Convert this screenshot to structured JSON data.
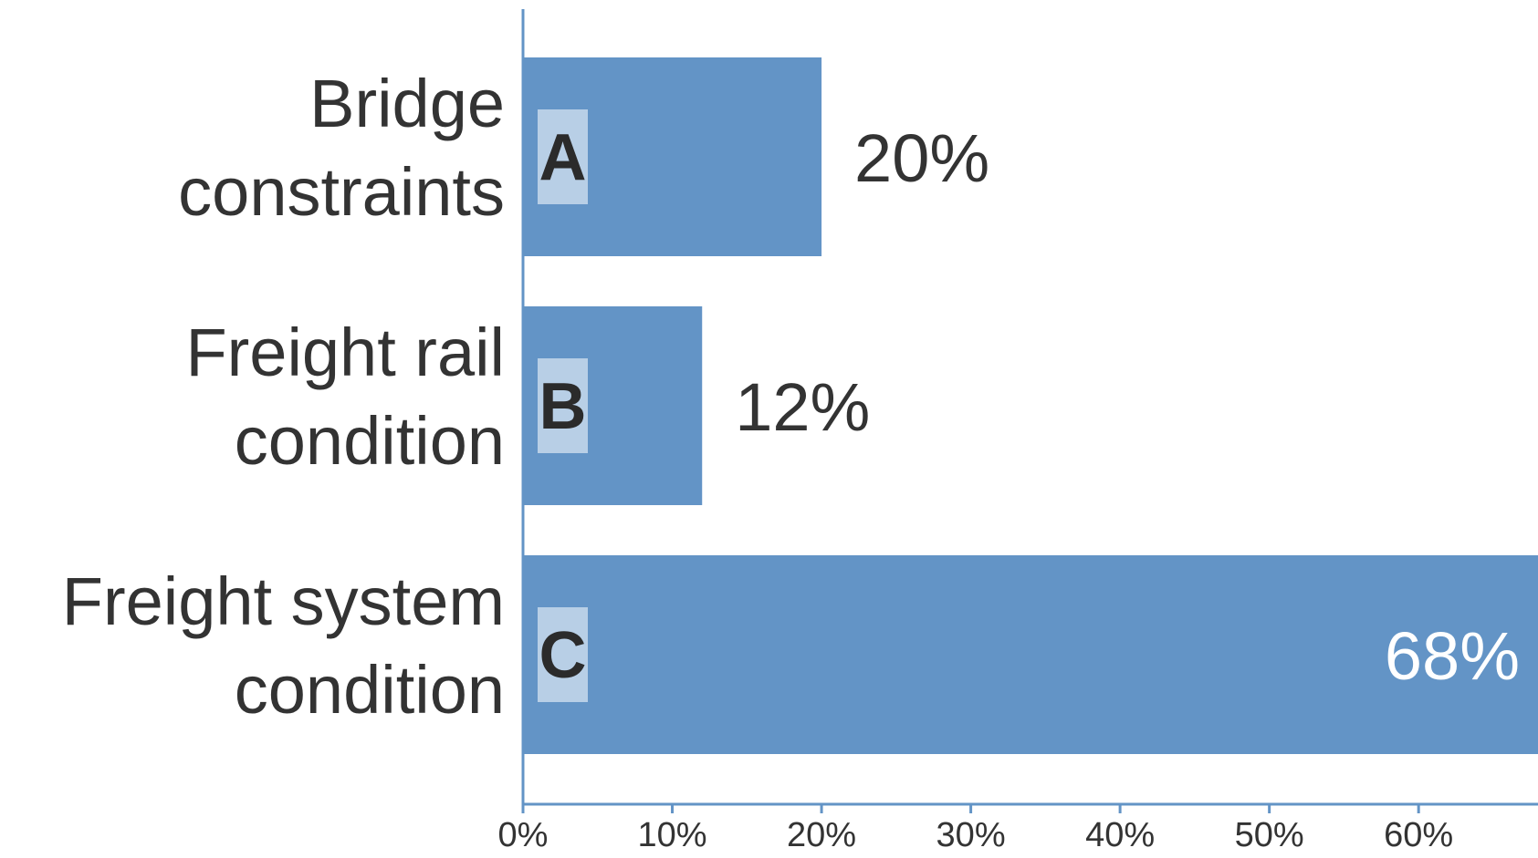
{
  "chart_data": {
    "type": "bar",
    "orientation": "horizontal",
    "categories": [
      "Bridge constraints",
      "Freight rail condition",
      "Freight system condition"
    ],
    "category_label_lines": [
      [
        "Bridge",
        "constraints"
      ],
      [
        "Freight rail",
        "condition"
      ],
      [
        "Freight system",
        "condition"
      ]
    ],
    "values": [
      20,
      12,
      68
    ],
    "value_labels": [
      "20%",
      "12%",
      "68%"
    ],
    "bar_letters": [
      "A",
      "B",
      "C"
    ],
    "x_ticks": [
      0,
      10,
      20,
      30,
      40,
      50,
      60
    ],
    "x_tick_labels": [
      "0%",
      "10%",
      "20%",
      "30%",
      "40%",
      "50%",
      "60%"
    ],
    "xlim": [
      0,
      68
    ],
    "title": "",
    "xlabel": "",
    "ylabel": "",
    "grid": false,
    "legend": "none",
    "colors": {
      "bar": "#6394c6",
      "axis": "#6394c6",
      "letter_box": "#b8cfe6",
      "text": "#333333",
      "inside_label": "#ffffff"
    }
  }
}
